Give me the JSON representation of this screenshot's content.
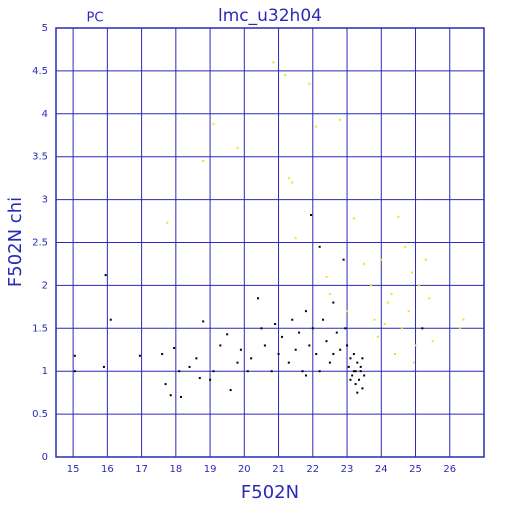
{
  "chart_data": {
    "type": "scatter",
    "title": "lmc_u32h04",
    "subtitle": "PC",
    "x_label": "F502N",
    "y_label": "F502N chi",
    "xlim": [
      14.5,
      27
    ],
    "ylim": [
      0,
      5
    ],
    "xticks": [
      15,
      16,
      17,
      18,
      19,
      20,
      21,
      22,
      23,
      24,
      25,
      26
    ],
    "yticks": [
      0,
      0.5,
      1,
      1.5,
      2,
      2.5,
      3,
      3.5,
      4,
      4.5,
      5
    ],
    "grid": true,
    "grid_color": "#2a2ab8",
    "series": [
      {
        "color": "#000000",
        "x": [
          15.05,
          15.05,
          15.95,
          16.1,
          15.9,
          16.95,
          17.6,
          17.7,
          17.85,
          17.95,
          18.1,
          18.15,
          18.4,
          18.6,
          18.7,
          18.8,
          19.0,
          19.1,
          19.3,
          19.5,
          19.6,
          19.8,
          19.9,
          20.1,
          20.2,
          20.4,
          20.5,
          20.6,
          20.8,
          20.9,
          21.0,
          21.1,
          21.3,
          21.4,
          21.5,
          21.6,
          21.7,
          21.8,
          21.9,
          21.95,
          22.0,
          22.1,
          22.2,
          22.3,
          22.4,
          22.5,
          22.6,
          22.7,
          22.8,
          22.9,
          22.95,
          23.0,
          23.05,
          23.1,
          23.15,
          23.2,
          23.25,
          23.3,
          23.35,
          23.4,
          23.45,
          23.5,
          23.3,
          23.2,
          23.4,
          23.1,
          23.45,
          23.25,
          22.6,
          22.2,
          21.8,
          25.2
        ],
        "y": [
          1.0,
          1.18,
          2.12,
          1.6,
          1.05,
          1.18,
          1.2,
          0.85,
          0.72,
          1.27,
          1.0,
          0.7,
          1.05,
          1.15,
          0.92,
          1.58,
          0.9,
          1.0,
          1.3,
          1.43,
          0.78,
          1.1,
          1.25,
          1.0,
          1.15,
          1.85,
          1.5,
          1.3,
          1.0,
          1.55,
          1.2,
          1.4,
          1.1,
          1.6,
          1.25,
          1.45,
          1.0,
          1.7,
          1.3,
          2.82,
          1.5,
          1.2,
          2.45,
          1.6,
          1.35,
          1.1,
          1.8,
          1.45,
          1.25,
          2.3,
          1.5,
          1.3,
          1.05,
          1.15,
          0.95,
          1.0,
          0.85,
          1.1,
          0.9,
          1.05,
          0.8,
          0.95,
          0.75,
          1.2,
          1.0,
          0.9,
          1.15,
          1.0,
          1.2,
          1.0,
          0.95,
          1.5
        ]
      },
      {
        "color": "#f0e020",
        "x": [
          17.75,
          18.8,
          19.1,
          19.8,
          20.85,
          21.2,
          21.3,
          21.4,
          21.5,
          21.9,
          22.1,
          22.8,
          23.2,
          23.5,
          24.0,
          24.3,
          24.5,
          24.7,
          24.9,
          25.1,
          25.3,
          25.5,
          24.2,
          24.6,
          23.8,
          23.7,
          23.9,
          24.8,
          25.0,
          26.3,
          26.4,
          24.4,
          22.5,
          22.4,
          23.0,
          24.1,
          25.4,
          24.95
        ],
        "y": [
          2.73,
          3.45,
          3.88,
          3.6,
          4.6,
          4.45,
          3.25,
          3.2,
          2.55,
          4.35,
          3.85,
          3.93,
          2.78,
          2.25,
          2.3,
          1.9,
          2.8,
          2.45,
          2.15,
          2.0,
          2.3,
          1.35,
          1.8,
          1.5,
          1.6,
          2.0,
          1.4,
          1.7,
          1.3,
          1.5,
          1.6,
          1.2,
          1.9,
          2.1,
          1.7,
          1.55,
          1.85,
          1.1
        ]
      }
    ]
  }
}
